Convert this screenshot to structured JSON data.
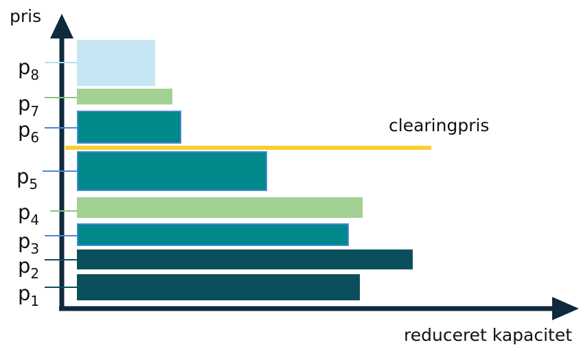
{
  "axes": {
    "y_label": "pris",
    "x_label": "reduceret kapacitet",
    "axis_color": "#0e2a3d"
  },
  "clearing": {
    "label": "clearingpris",
    "color": "#f7cf2f"
  },
  "bids": [
    {
      "base": "p",
      "sub": "1",
      "color": "#0b4f5c",
      "border": "#0b4f5c",
      "tick_color": "#0b4f5c"
    },
    {
      "base": "p",
      "sub": "2",
      "color": "#0b4f5c",
      "border": "#0b4f5c",
      "tick_color": "#0b4f5c"
    },
    {
      "base": "p",
      "sub": "3",
      "color": "#00888a",
      "border": "#4a86d6",
      "tick_color": "#4a86d6"
    },
    {
      "base": "p",
      "sub": "4",
      "color": "#a3d093",
      "border": "#a3d093",
      "tick_color": "#8cc47c"
    },
    {
      "base": "p",
      "sub": "5",
      "color": "#00888a",
      "border": "#4a86d6",
      "tick_color": "#4a86d6"
    },
    {
      "base": "p",
      "sub": "6",
      "color": "#00888a",
      "border": "#4a86d6",
      "tick_color": "#4a86d6"
    },
    {
      "base": "p",
      "sub": "7",
      "color": "#a3d093",
      "border": "#a3d093",
      "tick_color": "#8cc47c"
    },
    {
      "base": "p",
      "sub": "8",
      "color": "#c6e6f3",
      "border": "#c6e6f3",
      "tick_color": "#b9dcea"
    }
  ]
}
